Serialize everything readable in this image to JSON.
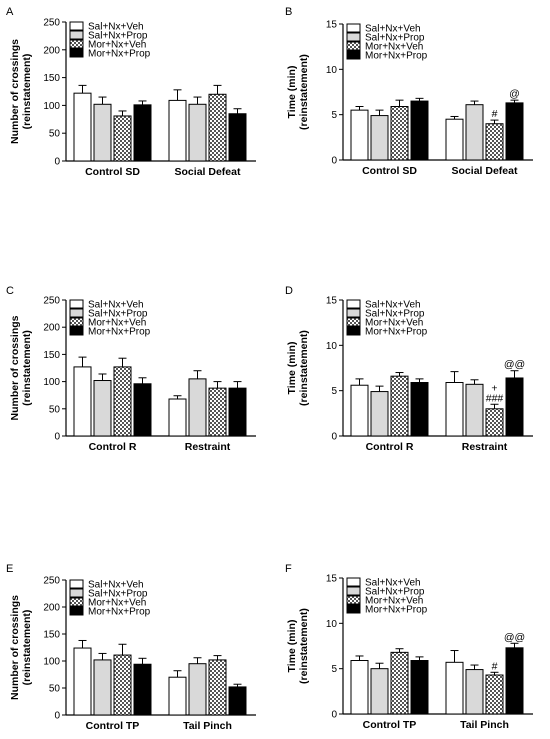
{
  "legend": [
    "Sal+Nx+Veh",
    "Sal+Nx+Prop",
    "Mor+Nx+Veh",
    "Mor+Nx+Prop"
  ],
  "colors": {
    "bar1": "#ffffff",
    "bar2": "#d9d9d9",
    "bar3": "checker",
    "bar4": "#000000",
    "stroke": "#000000"
  },
  "chart_data": [
    {
      "panel": "A",
      "type": "bar",
      "ylabel": [
        "Number of crossings",
        "(reinstatement)"
      ],
      "ylim": [
        0,
        250
      ],
      "yticks": [
        0,
        50,
        100,
        150,
        200,
        250
      ],
      "categories": [
        "Control SD",
        "Social Defeat"
      ],
      "series": [
        {
          "name": "Sal+Nx+Veh",
          "values": [
            122,
            109
          ],
          "errors": [
            14,
            19
          ]
        },
        {
          "name": "Sal+Nx+Prop",
          "values": [
            102,
            102
          ],
          "errors": [
            13,
            13
          ]
        },
        {
          "name": "Mor+Nx+Veh",
          "values": [
            81,
            120
          ],
          "errors": [
            9,
            16
          ]
        },
        {
          "name": "Mor+Nx+Prop",
          "values": [
            101,
            85
          ],
          "errors": [
            7,
            9
          ]
        }
      ],
      "annotations": []
    },
    {
      "panel": "B",
      "type": "bar",
      "ylabel": [
        "Time (min)",
        "(reinstatement)"
      ],
      "ylim": [
        0,
        15
      ],
      "yticks": [
        0,
        5,
        10,
        15
      ],
      "categories": [
        "Control SD",
        "Social Defeat"
      ],
      "series": [
        {
          "name": "Sal+Nx+Veh",
          "values": [
            5.5,
            4.5
          ],
          "errors": [
            0.4,
            0.3
          ]
        },
        {
          "name": "Sal+Nx+Prop",
          "values": [
            4.9,
            6.1
          ],
          "errors": [
            0.6,
            0.4
          ]
        },
        {
          "name": "Mor+Nx+Veh",
          "values": [
            5.9,
            4.0
          ],
          "errors": [
            0.7,
            0.4
          ]
        },
        {
          "name": "Mor+Nx+Prop",
          "values": [
            6.5,
            6.3
          ],
          "errors": [
            0.3,
            0.3
          ]
        }
      ],
      "annotations": [
        {
          "group": 1,
          "bar": 2,
          "lines": [
            "#"
          ]
        },
        {
          "group": 1,
          "bar": 3,
          "lines": [
            "@"
          ]
        }
      ]
    },
    {
      "panel": "C",
      "type": "bar",
      "ylabel": [
        "Number of crossings",
        "(reinstatement)"
      ],
      "ylim": [
        0,
        250
      ],
      "yticks": [
        0,
        50,
        100,
        150,
        200,
        250
      ],
      "categories": [
        "Control R",
        "Restraint"
      ],
      "series": [
        {
          "name": "Sal+Nx+Veh",
          "values": [
            127,
            68
          ],
          "errors": [
            18,
            6
          ]
        },
        {
          "name": "Sal+Nx+Prop",
          "values": [
            102,
            105
          ],
          "errors": [
            12,
            15
          ]
        },
        {
          "name": "Mor+Nx+Veh",
          "values": [
            127,
            88
          ],
          "errors": [
            16,
            12
          ]
        },
        {
          "name": "Mor+Nx+Prop",
          "values": [
            96,
            88
          ],
          "errors": [
            11,
            12
          ]
        }
      ],
      "annotations": []
    },
    {
      "panel": "D",
      "type": "bar",
      "ylabel": [
        "Time (min)",
        "(reinstatement)"
      ],
      "ylim": [
        0,
        15
      ],
      "yticks": [
        0,
        5,
        10,
        15
      ],
      "categories": [
        "Control R",
        "Restraint"
      ],
      "series": [
        {
          "name": "Sal+Nx+Veh",
          "values": [
            5.6,
            5.9
          ],
          "errors": [
            0.7,
            1.2
          ]
        },
        {
          "name": "Sal+Nx+Prop",
          "values": [
            4.9,
            5.7
          ],
          "errors": [
            0.6,
            0.5
          ]
        },
        {
          "name": "Mor+Nx+Veh",
          "values": [
            6.6,
            3.0
          ],
          "errors": [
            0.4,
            0.5
          ]
        },
        {
          "name": "Mor+Nx+Prop",
          "values": [
            5.9,
            6.4
          ],
          "errors": [
            0.4,
            0.8
          ]
        }
      ],
      "annotations": [
        {
          "group": 1,
          "bar": 2,
          "lines": [
            "+",
            "###"
          ]
        },
        {
          "group": 1,
          "bar": 3,
          "lines": [
            "@@"
          ]
        }
      ]
    },
    {
      "panel": "E",
      "type": "bar",
      "ylabel": [
        "Number of crossings",
        "(reinstatement)"
      ],
      "ylim": [
        0,
        250
      ],
      "yticks": [
        0,
        50,
        100,
        150,
        200,
        250
      ],
      "categories": [
        "Control TP",
        "Tail Pinch"
      ],
      "series": [
        {
          "name": "Sal+Nx+Veh",
          "values": [
            124,
            70
          ],
          "errors": [
            14,
            12
          ]
        },
        {
          "name": "Sal+Nx+Prop",
          "values": [
            102,
            95
          ],
          "errors": [
            12,
            11
          ]
        },
        {
          "name": "Mor+Nx+Veh",
          "values": [
            111,
            102
          ],
          "errors": [
            20,
            8
          ]
        },
        {
          "name": "Mor+Nx+Prop",
          "values": [
            94,
            52
          ],
          "errors": [
            11,
            5
          ]
        }
      ],
      "annotations": []
    },
    {
      "panel": "F",
      "type": "bar",
      "ylabel": [
        "Time (min)",
        "(reinstatement)"
      ],
      "ylim": [
        0,
        15
      ],
      "yticks": [
        0,
        5,
        10,
        15
      ],
      "categories": [
        "Control TP",
        "Tail Pinch"
      ],
      "series": [
        {
          "name": "Sal+Nx+Veh",
          "values": [
            5.9,
            5.7
          ],
          "errors": [
            0.5,
            1.3
          ]
        },
        {
          "name": "Sal+Nx+Prop",
          "values": [
            5.0,
            4.9
          ],
          "errors": [
            0.6,
            0.5
          ]
        },
        {
          "name": "Mor+Nx+Veh",
          "values": [
            6.8,
            4.3
          ],
          "errors": [
            0.4,
            0.3
          ]
        },
        {
          "name": "Mor+Nx+Prop",
          "values": [
            5.9,
            7.3
          ],
          "errors": [
            0.4,
            0.5
          ]
        }
      ],
      "annotations": [
        {
          "group": 1,
          "bar": 2,
          "lines": [
            "#"
          ]
        },
        {
          "group": 1,
          "bar": 3,
          "lines": [
            "@@"
          ]
        }
      ]
    }
  ]
}
